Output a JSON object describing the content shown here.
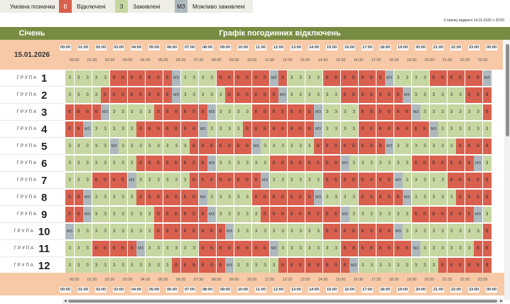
{
  "legend": {
    "caption": "Умовна позначка",
    "items": [
      {
        "code": "В",
        "label": "Відключені",
        "color": "#d9604e"
      },
      {
        "code": "З",
        "label": "Заживлені",
        "color": "#c7d7a1"
      },
      {
        "code": "МЗ",
        "label": "Можливо заживлені",
        "color": "#aeb9be"
      }
    ]
  },
  "opened_text": "Сторінку відкрито 14.01.2026 о 20:50",
  "header": {
    "month": "Січень",
    "title": "Графік погодинних відключень"
  },
  "date": "15.01.2026",
  "hours": [
    "00:00",
    "01:00",
    "02:00",
    "03:00",
    "04:00",
    "05:00",
    "06:00",
    "07:00",
    "08:00",
    "09:00",
    "10:00",
    "11:00",
    "12:00",
    "13:00",
    "14:00",
    "15:00",
    "16:00",
    "17:00",
    "18:00",
    "19:00",
    "20:00",
    "21:00",
    "22:00",
    "23:00",
    "00:00"
  ],
  "half_hours": [
    "00:30",
    "01:30",
    "02:30",
    "03:30",
    "04:30",
    "05:30",
    "06:30",
    "07:30",
    "08:30",
    "09:30",
    "10:30",
    "11:30",
    "12:30",
    "13:30",
    "14:30",
    "15:30",
    "16:30",
    "17:30",
    "18:30",
    "19:30",
    "20:30",
    "21:30",
    "22:30",
    "23:30"
  ],
  "group_word": "ГРУПА",
  "groups": [
    {
      "number": "1",
      "schedule": "ZZZZZBBBBBBBMZZZZBBBBBBMBZZZZBBBBBBBMZZZZBBBBBBMBZ"
    },
    {
      "number": "2",
      "schedule": "ZZZZBBBBBBBBMZZZZZBBBBBBMZZZZZZBBBBBBBMZZZZZZBBBBB"
    },
    {
      "number": "3",
      "schedule": "BBBBMZZZZZBBBBBBMZZZZBBBBBBBMZZZZBBBBBBMZZZZZZZBBB"
    },
    {
      "number": "4",
      "schedule": "BBMZZZZZBBBBBBBMZZZZBBBBBBBBMZZZZBBBBBBBBMZZZZZZBB"
    },
    {
      "number": "5",
      "schedule": "ZZZZZMZZZZZZZZBBBBBBBMZZZZZZBBBBBBBBMZZZZZZZBBBBBB"
    },
    {
      "number": "6",
      "schedule": "ZZZZZZZZBBBBBBBBMZZZZZZBBBBBBBBMZZZZZZZBBBBBBBMZZZ"
    },
    {
      "number": "7",
      "schedule": "ZZZBBBBMZZZZZZBBBBBBBBMZZZZZZBBBBBBBBMZZZZZBBBBBBB"
    },
    {
      "number": "8",
      "schedule": "BBMZZZZZBBBBBBBMZZZZZBBBBBBBMZZZZBBBBBMZZZZZBBBBBB"
    },
    {
      "number": "9",
      "schedule": "BBMZZZZZZZBBBBBBMZZZZZBBBBBBBBBMZZZZZZZBBBBBBBMZZZ"
    },
    {
      "number": "10",
      "schedule": "MZZZZZZZZZBBBBBBBBMZZZZZZZZZZBBBBBBBBMZZZZZZZZZBBB"
    },
    {
      "number": "11",
      "schedule": "ZZZBBBBBMZZZZZZBBBBBBBBMZZZZZZZBBBBBBBBMZZZZZZBBBB"
    },
    {
      "number": "12",
      "schedule": "ZZZZZZZZZZZZBBBBBBMZZZZZBBBBBBBBMZZZZZZZZZBBBBBBBM"
    }
  ],
  "cell_labels": {
    "B": "В",
    "Z": "З",
    "M": "МЗ"
  }
}
